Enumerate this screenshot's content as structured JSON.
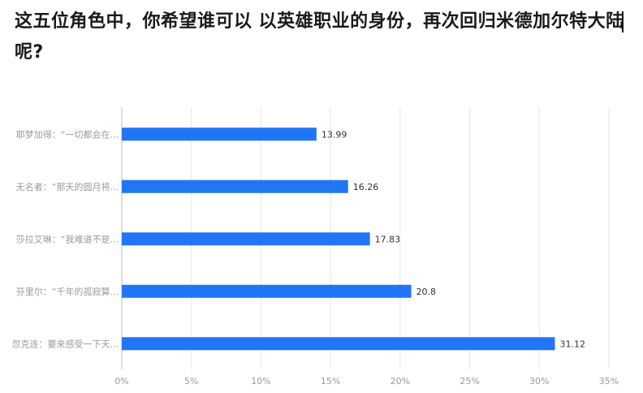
{
  "title": "这五位角色中，你希望谁可以 以英雄职业的身份，再次回归米德加尔特大陆呢?",
  "colors": {
    "bar": "#2176f5",
    "grid": "#e6e6e6",
    "axis": "#bdbdbd"
  },
  "chart_data": {
    "type": "bar",
    "orientation": "horizontal",
    "categories": [
      "耶梦加得：“一切都会在...",
      "无名者：“那天的圆月将...",
      "莎拉艾琳：“我难道不是...",
      "芬里尔：“千年的孤寂算...",
      "忽克连：要来感受一下天..."
    ],
    "values": [
      13.99,
      16.26,
      17.83,
      20.8,
      31.12
    ],
    "value_labels": [
      "13.99",
      "16.26",
      "17.83",
      "20.8",
      "31.12"
    ],
    "xlim": [
      0,
      35
    ],
    "xticks": [
      0,
      5,
      10,
      15,
      20,
      25,
      30,
      35
    ],
    "xtick_labels": [
      "0%",
      "5%",
      "10%",
      "15%",
      "20%",
      "25%",
      "30%",
      "35%"
    ],
    "grid": true
  }
}
